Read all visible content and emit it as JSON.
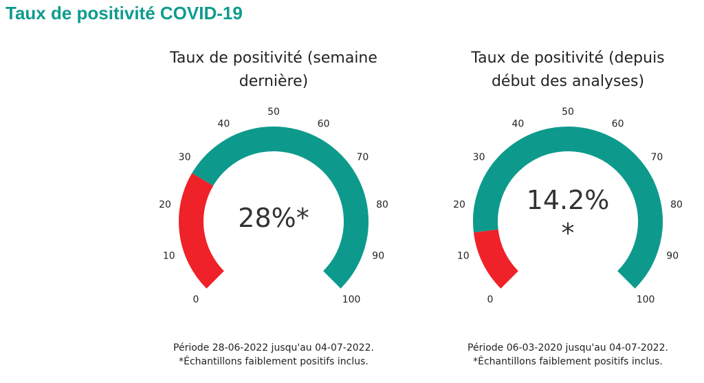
{
  "page_title": "Taux de positivité COVID-19",
  "colors": {
    "title": "#0f9b8e",
    "positive": "#ee2228",
    "remaining": "#0d9a8d"
  },
  "chart_data": [
    {
      "type": "gauge",
      "title_line1": "Taux de positivité (semaine",
      "title_line2": "dernière)",
      "value": 28,
      "value_label": "28%*",
      "value_label_line2": "",
      "range": [
        0,
        100
      ],
      "ticks": [
        "0",
        "10",
        "20",
        "30",
        "40",
        "50",
        "60",
        "70",
        "80",
        "90",
        "100"
      ],
      "period": "Période  28-06-2022 jusqu'au 04-07-2022.",
      "note": "*Échantillons faiblement positifs inclus."
    },
    {
      "type": "gauge",
      "title_line1": "Taux de positivité (depuis",
      "title_line2": "début des analyses)",
      "value": 14.2,
      "value_label": "14.2%",
      "value_label_line2": "*",
      "range": [
        0,
        100
      ],
      "ticks": [
        "0",
        "10",
        "20",
        "30",
        "40",
        "50",
        "60",
        "70",
        "80",
        "90",
        "100"
      ],
      "period": "Période  06-03-2020 jusqu'au 04-07-2022.",
      "note": "*Échantillons faiblement positifs inclus."
    }
  ]
}
